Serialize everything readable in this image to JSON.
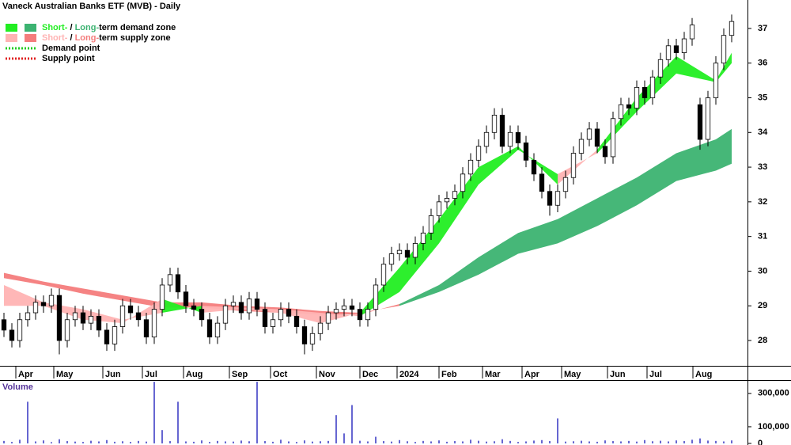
{
  "chart_data": {
    "type": "candlestick",
    "title": "Vaneck Australian Banks ETF (MVB) - Daily",
    "xlim": [
      -0.5,
      94
    ],
    "xticks": [
      {
        "value": 1.5,
        "label": "Apr"
      },
      {
        "value": 6.3,
        "label": "May"
      },
      {
        "value": 12.5,
        "label": "Jun"
      },
      {
        "value": 17.5,
        "label": "Jul"
      },
      {
        "value": 22.7,
        "label": "Aug"
      },
      {
        "value": 28.5,
        "label": "Sep"
      },
      {
        "value": 33.7,
        "label": "Oct"
      },
      {
        "value": 39.5,
        "label": "Nov"
      },
      {
        "value": 45,
        "label": "Dec"
      },
      {
        "value": 49.7,
        "label": "2024"
      },
      {
        "value": 55,
        "label": "Feb"
      },
      {
        "value": 60.5,
        "label": "Mar"
      },
      {
        "value": 65.5,
        "label": "Apr"
      },
      {
        "value": 70.5,
        "label": "May"
      },
      {
        "value": 76.3,
        "label": "Jun"
      },
      {
        "value": 81.3,
        "label": "Jul"
      },
      {
        "value": 87.1,
        "label": "Aug"
      }
    ],
    "ylim": [
      27.27,
      37.82
    ],
    "yticks": [
      28,
      29,
      30,
      31,
      32,
      33,
      34,
      35,
      36,
      37
    ],
    "up_color": "#ffffff",
    "down_color": "#000000",
    "open": [
      28.6,
      28.3,
      28.0,
      28.6,
      28.8,
      29.1,
      29.0,
      29.3,
      28.0,
      28.6,
      28.8,
      28.5,
      28.7,
      28.3,
      27.9,
      28.4,
      29.0,
      28.8,
      28.6,
      28.1,
      28.9,
      29.6,
      29.9,
      29.4,
      29.0,
      28.9,
      28.6,
      28.1,
      28.5,
      29.0,
      29.1,
      28.8,
      29.2,
      28.9,
      28.4,
      28.6,
      28.9,
      28.7,
      28.4,
      27.9,
      28.2,
      28.5,
      28.8,
      28.9,
      29.0,
      28.9,
      28.6,
      28.9,
      29.6,
      30.2,
      30.5,
      30.6,
      30.4,
      30.8,
      31.1,
      31.6,
      32.0,
      32.1,
      32.3,
      32.8,
      33.2,
      33.6,
      34.0,
      34.5,
      33.6,
      34.0,
      33.7,
      33.2,
      32.8,
      32.3,
      31.9,
      32.3,
      32.7,
      33.4,
      33.8,
      34.1,
      33.6,
      33.3,
      34.4,
      34.8,
      34.7,
      35.3,
      35.0,
      35.6,
      36.1,
      36.5,
      36.3,
      36.7,
      34.8,
      33.8,
      35.0,
      36.0,
      36.8
    ],
    "high": [
      28.8,
      28.5,
      28.8,
      29.0,
      29.3,
      29.3,
      29.5,
      29.5,
      28.8,
      29.0,
      29.0,
      28.9,
      28.9,
      28.5,
      28.6,
      29.2,
      29.2,
      29.0,
      28.8,
      29.1,
      29.8,
      30.1,
      30.1,
      29.6,
      29.2,
      29.1,
      28.8,
      28.7,
      29.2,
      29.3,
      29.3,
      29.4,
      29.4,
      29.1,
      28.8,
      29.1,
      29.1,
      28.9,
      28.6,
      28.4,
      28.7,
      29.0,
      29.1,
      29.2,
      29.2,
      29.1,
      29.1,
      29.8,
      30.4,
      30.7,
      30.8,
      30.8,
      31.0,
      31.3,
      31.8,
      32.2,
      32.3,
      32.5,
      33.0,
      33.4,
      33.8,
      34.2,
      34.7,
      34.7,
      34.2,
      34.2,
      33.9,
      33.4,
      33.0,
      32.5,
      32.5,
      32.9,
      33.6,
      34.0,
      34.3,
      34.3,
      33.8,
      34.6,
      35.0,
      35.0,
      35.5,
      35.5,
      35.8,
      36.3,
      36.7,
      36.7,
      36.9,
      37.3,
      35.0,
      35.2,
      36.2,
      37.0,
      37.4
    ],
    "low": [
      28.1,
      27.8,
      27.8,
      28.4,
      28.6,
      28.8,
      28.8,
      27.6,
      27.8,
      28.4,
      28.3,
      28.3,
      28.1,
      27.7,
      27.7,
      28.2,
      28.6,
      28.4,
      27.9,
      27.9,
      28.7,
      29.4,
      29.2,
      28.8,
      28.7,
      28.4,
      27.9,
      27.9,
      28.3,
      28.8,
      28.6,
      28.6,
      28.7,
      28.2,
      28.2,
      28.4,
      28.5,
      28.2,
      27.6,
      27.7,
      28.0,
      28.3,
      28.6,
      28.7,
      28.7,
      28.4,
      28.4,
      28.7,
      29.4,
      30.0,
      30.3,
      30.2,
      30.2,
      30.6,
      30.9,
      31.4,
      31.8,
      31.9,
      32.1,
      32.6,
      33.0,
      33.4,
      33.8,
      33.4,
      33.4,
      33.5,
      33.0,
      32.6,
      32.1,
      31.6,
      31.7,
      32.1,
      32.5,
      33.2,
      33.6,
      33.4,
      33.1,
      33.1,
      34.2,
      34.5,
      34.5,
      34.8,
      34.8,
      35.4,
      35.9,
      36.1,
      36.1,
      36.5,
      33.5,
      33.6,
      34.8,
      35.8,
      36.6
    ],
    "close": [
      28.3,
      28.0,
      28.6,
      28.8,
      29.1,
      29.0,
      29.3,
      28.0,
      28.6,
      28.8,
      28.5,
      28.7,
      28.3,
      27.9,
      28.4,
      29.0,
      28.8,
      28.6,
      28.1,
      28.9,
      29.6,
      29.9,
      29.4,
      29.0,
      28.9,
      28.6,
      28.1,
      28.5,
      29.0,
      29.1,
      28.8,
      29.2,
      28.9,
      28.4,
      28.6,
      28.9,
      28.7,
      28.4,
      27.9,
      28.2,
      28.5,
      28.8,
      28.9,
      29.0,
      28.9,
      28.6,
      28.9,
      29.6,
      30.2,
      30.5,
      30.6,
      30.4,
      30.8,
      31.1,
      31.6,
      32.0,
      32.1,
      32.3,
      32.8,
      33.2,
      33.6,
      34.0,
      34.5,
      33.6,
      34.0,
      33.7,
      33.2,
      32.8,
      32.3,
      31.9,
      32.3,
      32.7,
      33.4,
      33.8,
      34.1,
      33.6,
      33.3,
      34.4,
      34.8,
      34.7,
      35.3,
      35.0,
      35.6,
      36.1,
      36.5,
      36.3,
      36.7,
      37.1,
      33.8,
      35.0,
      36.0,
      36.8,
      37.2
    ],
    "zones": [
      {
        "name": "Long-term",
        "demand_color": "#3cb371",
        "supply_color": "#f47c7c",
        "x": [
          0,
          5,
          10,
          15,
          20,
          25,
          30,
          35,
          40,
          45,
          50,
          55,
          60,
          65,
          70,
          75,
          80,
          85,
          90,
          92
        ],
        "fast": [
          29.8,
          29.6,
          29.35,
          29.15,
          28.95,
          28.95,
          28.85,
          28.8,
          28.75,
          28.75,
          29.05,
          29.6,
          30.4,
          31.1,
          31.5,
          32.1,
          32.7,
          33.4,
          33.8,
          34.1
        ],
        "slow": [
          29.95,
          29.7,
          29.5,
          29.3,
          29.1,
          29.1,
          29.0,
          28.95,
          28.85,
          28.8,
          29.0,
          29.4,
          29.9,
          30.5,
          30.8,
          31.3,
          31.9,
          32.6,
          32.9,
          33.1
        ]
      },
      {
        "name": "Short-term",
        "demand_color": "#22ee22",
        "supply_color": "#ffb3b3",
        "x": [
          0,
          5,
          10,
          15,
          20,
          25,
          30,
          35,
          40,
          45,
          50,
          55,
          60,
          65,
          70,
          75,
          80,
          85,
          90,
          92
        ],
        "fast": [
          29.0,
          29.0,
          28.6,
          28.5,
          29.2,
          28.8,
          28.9,
          28.8,
          28.5,
          28.8,
          30.1,
          31.5,
          33.0,
          33.6,
          32.5,
          33.5,
          35.0,
          36.2,
          35.5,
          36.3
        ],
        "slow": [
          29.6,
          29.1,
          28.9,
          28.6,
          28.8,
          29.0,
          28.95,
          28.9,
          28.8,
          28.7,
          29.4,
          30.8,
          32.5,
          33.5,
          32.8,
          33.4,
          34.6,
          35.7,
          35.45,
          36.0
        ]
      }
    ],
    "legend": [
      {
        "short": "Short-",
        "sep": " / ",
        "long": "Long-",
        "text": "term demand zone",
        "short_color": "#22ee22",
        "long_color": "#3cb371"
      },
      {
        "short": "Short-",
        "sep": " / ",
        "long": "Long-",
        "text": "term supply zone",
        "short_color": "#ffb3b3",
        "long_color": "#f47c7c"
      }
    ],
    "points_legend": [
      {
        "label": "Demand point",
        "color": "#22cc22"
      },
      {
        "label": "Supply point",
        "color": "#e02020"
      }
    ],
    "volume": {
      "label": "Volume",
      "color": "#5555cc",
      "ylim": [
        0,
        380000
      ],
      "yticks": [
        0,
        {
          "value": 100000,
          "label": "100,000"
        },
        {
          "value": 300000,
          "label": "300,000"
        }
      ],
      "values": [
        15000,
        9000,
        22000,
        250000,
        12000,
        18000,
        8000,
        25000,
        14000,
        11000,
        9000,
        16000,
        12000,
        20000,
        10000,
        13000,
        9000,
        15000,
        11000,
        370000,
        80000,
        14000,
        250000,
        12000,
        10000,
        18000,
        9000,
        15000,
        12000,
        11000,
        17000,
        13000,
        370000,
        14000,
        10000,
        22000,
        12000,
        9000,
        18000,
        11000,
        13000,
        15000,
        170000,
        60000,
        230000,
        16000,
        12000,
        40000,
        14000,
        11000,
        20000,
        13000,
        9000,
        15000,
        12000,
        18000,
        10000,
        14000,
        12000,
        22000,
        16000,
        11000,
        13000,
        25000,
        15000,
        9000,
        12000,
        17000,
        20000,
        14000,
        150000,
        11000,
        13000,
        16000,
        12000,
        10000,
        18000,
        14000,
        12000,
        15000,
        11000,
        20000,
        13000,
        16000,
        12000,
        18000,
        14000,
        22000,
        30000,
        17000,
        15000,
        12000,
        18000
      ]
    }
  }
}
